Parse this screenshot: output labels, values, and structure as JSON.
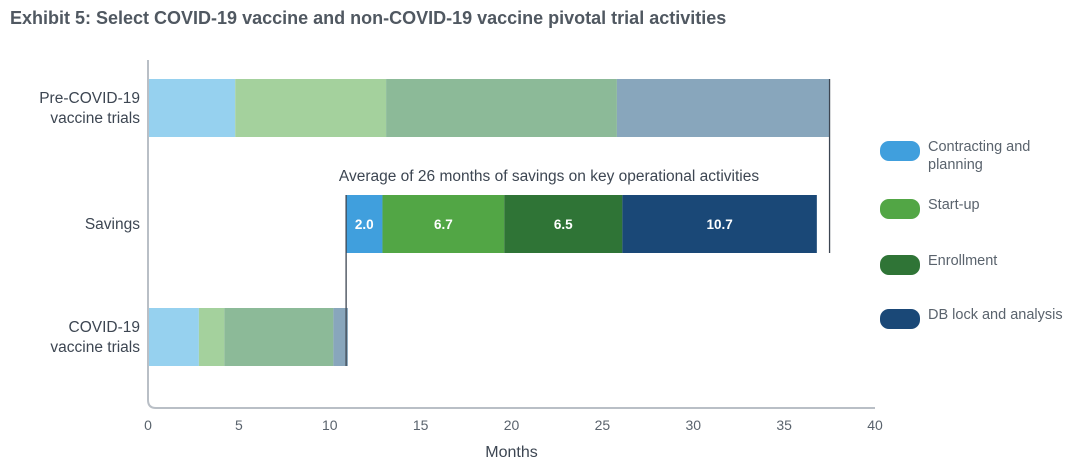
{
  "title": "Exhibit 5: Select COVID-19 vaccine and non-COVID-19 vaccine pivotal trial activities",
  "colors": {
    "pre": [
      "#96d1ef",
      "#a4d19d",
      "#8cba98",
      "#88a6bc"
    ],
    "savings": [
      "#409fdd",
      "#52a645",
      "#2f7436",
      "#1a4877"
    ],
    "covid": [
      "#96d1ef",
      "#a4d19d",
      "#8cba98",
      "#88a6bc"
    ],
    "axis": "#b9bfc6",
    "connector": "#3d4652"
  },
  "legend": [
    {
      "label": "Contracting and planning",
      "color": "#409fdd"
    },
    {
      "label": "Start-up",
      "color": "#52a645"
    },
    {
      "label": "Enrollment",
      "color": "#2f7436"
    },
    {
      "label": "DB lock and analysis",
      "color": "#1a4877"
    }
  ],
  "chart_data": {
    "type": "bar",
    "orientation": "horizontal",
    "stacked": true,
    "categories": [
      "Pre-COVID-19 vaccine trials",
      "Savings",
      "COVID-19 vaccine trials"
    ],
    "stages": [
      "Contracting and planning",
      "Start-up",
      "Enrollment",
      "DB lock and analysis"
    ],
    "rows": [
      {
        "label": "Pre-COVID-19 vaccine trials",
        "start": 0,
        "values": [
          4.8,
          8.3,
          12.7,
          11.7
        ]
      },
      {
        "label": "Savings",
        "start": 10.9,
        "values": [
          2.0,
          6.7,
          6.5,
          10.7
        ],
        "data_labels": [
          "2.0",
          "6.7",
          "6.5",
          "10.7"
        ]
      },
      {
        "label": "COVID-19 vaccine trials",
        "start": 0,
        "values": [
          2.8,
          1.4,
          6.0,
          0.8
        ]
      }
    ],
    "annotation": "Average of 26 months of savings on key operational activities",
    "xlabel": "Months",
    "xlim": [
      0,
      40
    ],
    "xticks": [
      "0",
      "5",
      "10",
      "15",
      "20",
      "25",
      "30",
      "35",
      "40"
    ],
    "grid": false,
    "legend_position": "right"
  }
}
